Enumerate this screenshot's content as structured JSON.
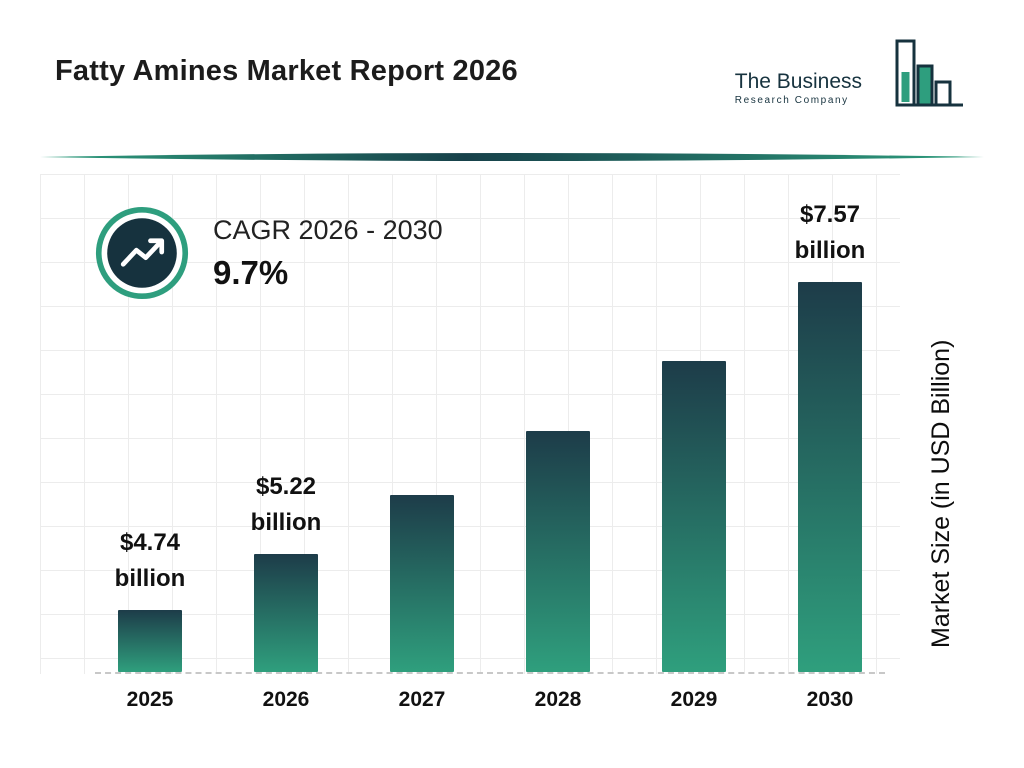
{
  "header": {
    "title": "Fatty Amines Market Report 2026",
    "logo": {
      "line1": "The Business",
      "line2": "Research Company"
    }
  },
  "cagr": {
    "label": "CAGR 2026 - 2030",
    "value": "9.7%"
  },
  "axis": {
    "y_label": "Market Size (in USD Billion)"
  },
  "colors": {
    "accent_teal": "#2e9e7e",
    "dark_navy": "#16323e",
    "bar_gradient_top": "#1d3c49",
    "bar_gradient_bottom": "#2f9f7d"
  },
  "chart_data": {
    "type": "bar",
    "title": "Fatty Amines Market Report 2026",
    "categories": [
      "2025",
      "2026",
      "2027",
      "2028",
      "2029",
      "2030"
    ],
    "values": [
      4.74,
      5.22,
      5.73,
      6.28,
      6.89,
      7.57
    ],
    "value_labels": [
      "$4.74 billion",
      "$5.22 billion",
      null,
      null,
      null,
      "$7.57 billion"
    ],
    "xlabel": "",
    "ylabel": "Market Size (in USD Billion)",
    "ylim": [
      4.2,
      7.6
    ],
    "grid": true,
    "legend": "none",
    "cagr_label": "CAGR 2026 - 2030",
    "cagr_pct": 9.7,
    "units": "USD Billion"
  }
}
